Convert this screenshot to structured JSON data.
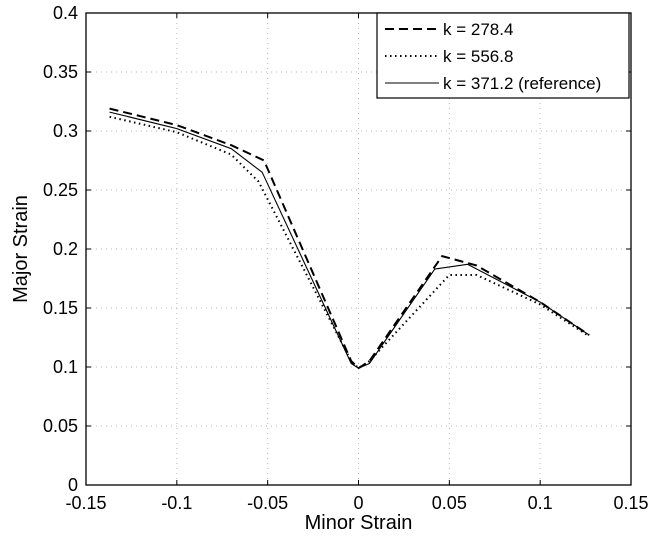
{
  "chart_data": {
    "type": "line",
    "title": "",
    "xlabel": "Minor Strain",
    "ylabel": "Major Strain",
    "xlim": [
      -0.15,
      0.15
    ],
    "ylim": [
      0,
      0.4
    ],
    "xticks": [
      -0.15,
      -0.1,
      -0.05,
      0,
      0.05,
      0.1,
      0.15
    ],
    "xtick_labels": [
      "-0.15",
      "-0.1",
      "-0.05",
      "0",
      "0.05",
      "0.1",
      "0.15"
    ],
    "yticks": [
      0,
      0.05,
      0.1,
      0.15,
      0.2,
      0.25,
      0.3,
      0.35,
      0.4
    ],
    "ytick_labels": [
      "0",
      "0.05",
      "0.1",
      "0.15",
      "0.2",
      "0.25",
      "0.3",
      "0.35",
      "0.4"
    ],
    "grid": true,
    "legend_position": "top-right",
    "series": [
      {
        "name": "k = 278.4",
        "style": "dashed",
        "color": "#000000",
        "x": [
          -0.137,
          -0.1,
          -0.07,
          -0.052,
          -0.004,
          0.0,
          0.006,
          0.046,
          0.065,
          0.1,
          0.127
        ],
        "y": [
          0.319,
          0.305,
          0.288,
          0.275,
          0.105,
          0.099,
          0.105,
          0.194,
          0.186,
          0.155,
          0.127
        ]
      },
      {
        "name": "k = 556.8",
        "style": "dotted",
        "color": "#000000",
        "x": [
          -0.137,
          -0.1,
          -0.07,
          -0.055,
          -0.004,
          0.0,
          0.006,
          0.05,
          0.065,
          0.1,
          0.127
        ],
        "y": [
          0.312,
          0.299,
          0.28,
          0.257,
          0.105,
          0.099,
          0.105,
          0.178,
          0.178,
          0.153,
          0.126
        ]
      },
      {
        "name": "k = 371.2 (reference)",
        "style": "solid",
        "color": "#000000",
        "x": [
          -0.137,
          -0.1,
          -0.07,
          -0.053,
          -0.004,
          0.0,
          0.006,
          0.042,
          0.06,
          0.1,
          0.127
        ],
        "y": [
          0.316,
          0.302,
          0.285,
          0.265,
          0.103,
          0.099,
          0.103,
          0.183,
          0.187,
          0.155,
          0.127
        ]
      }
    ]
  }
}
